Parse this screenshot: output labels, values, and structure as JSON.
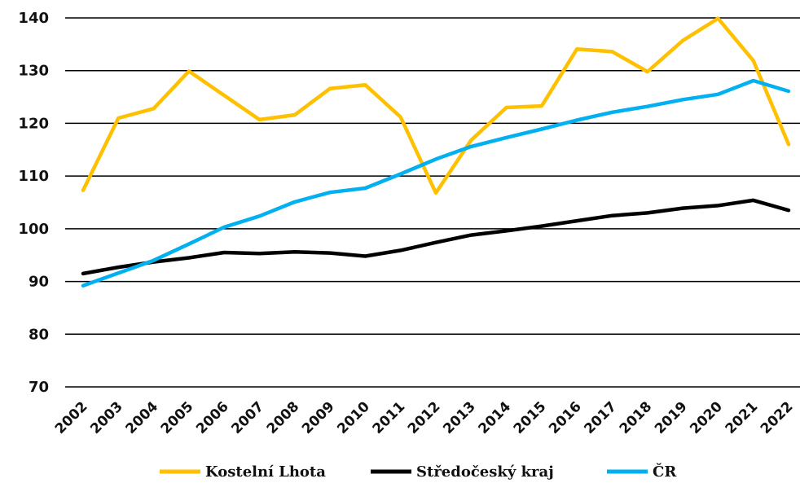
{
  "chart_data": {
    "type": "line",
    "title": "",
    "xlabel": "",
    "ylabel": "",
    "ylim": [
      70,
      140
    ],
    "yticks": [
      "70",
      "80",
      "90",
      "100",
      "110",
      "120",
      "130",
      "140"
    ],
    "grid": "horizontal",
    "legend_position": "bottom",
    "categories": [
      "2002",
      "2003",
      "2004",
      "2005",
      "2006",
      "2007",
      "2008",
      "2009",
      "2010",
      "2011",
      "2012",
      "2013",
      "2014",
      "2015",
      "2016",
      "2017",
      "2018",
      "2019",
      "2020",
      "2021",
      "2022"
    ],
    "series": [
      {
        "name": "Kostelní Lhota",
        "color": "#FFC000",
        "values": [
          107.3,
          121.0,
          122.8,
          129.9,
          125.3,
          120.7,
          121.6,
          126.6,
          127.3,
          121.2,
          106.8,
          116.8,
          123.0,
          123.3,
          134.1,
          133.6,
          129.8,
          135.7,
          139.9,
          131.9,
          116.0
        ]
      },
      {
        "name": "Středočeský kraj",
        "color": "#000000",
        "values": [
          91.5,
          92.7,
          93.7,
          94.5,
          95.5,
          95.3,
          95.6,
          95.4,
          94.8,
          95.9,
          97.4,
          98.8,
          99.6,
          100.5,
          101.5,
          102.5,
          103.0,
          103.9,
          104.4,
          105.4,
          103.5
        ]
      },
      {
        "name": "ČR",
        "color": "#00B0F0",
        "values": [
          89.2,
          91.6,
          94.0,
          97.1,
          100.3,
          102.4,
          105.1,
          106.9,
          107.7,
          110.4,
          113.2,
          115.6,
          117.3,
          118.9,
          120.6,
          122.1,
          123.2,
          124.5,
          125.5,
          128.1,
          126.1
        ]
      }
    ]
  }
}
